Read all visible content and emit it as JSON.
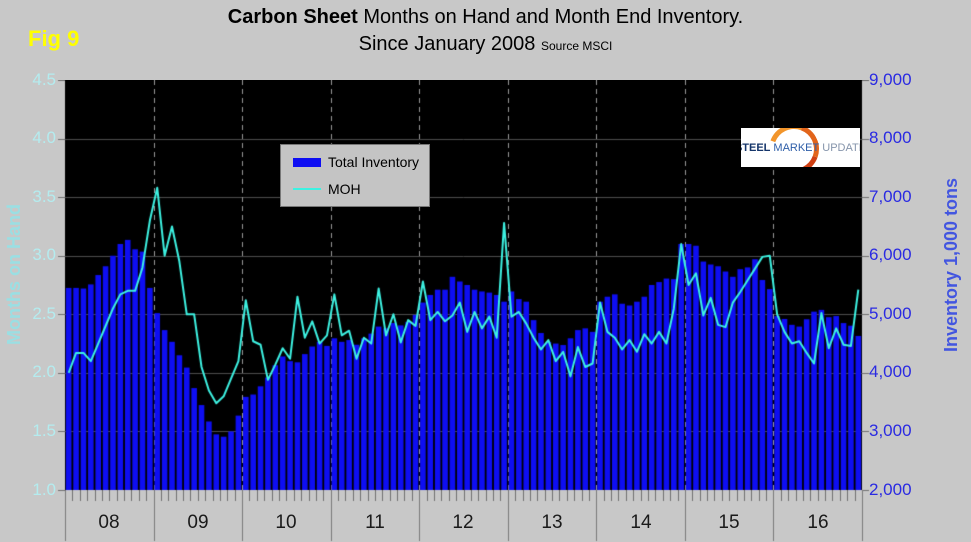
{
  "fig_label": "Fig 9",
  "title": {
    "bold": "Carbon Sheet",
    "rest": " Months on Hand and Month End Inventory.",
    "line2": "Since January 2008",
    "source": "Source MSCI"
  },
  "legend": {
    "inventory_label": "Total Inventory",
    "moh_label": "MOH"
  },
  "logo": {
    "word1": "STEEL",
    "word2": "MARKET",
    "word3": "UPDATE"
  },
  "axes": {
    "left": {
      "title": "Months on Hand",
      "ticks": [
        "4.5",
        "4.0",
        "3.5",
        "3.0",
        "2.5",
        "2.0",
        "1.5",
        "1.0"
      ]
    },
    "right": {
      "title": "Inventory 1,000 tons",
      "ticks": [
        "9,000",
        "8,000",
        "7,000",
        "6,000",
        "5,000",
        "4,000",
        "3,000",
        "2,000"
      ]
    },
    "x": {
      "years": [
        "08",
        "09",
        "10",
        "11",
        "12",
        "13",
        "14",
        "15",
        "16"
      ]
    }
  },
  "colors": {
    "page_bg": "#c8c8c8",
    "plot_bg": "#000000",
    "bar": "#0e0ef2",
    "line": "#3df2e2",
    "grid": "#4e4e4e",
    "year_dash": "#999999",
    "tick": "#707070",
    "year_line": "#7a7a7a",
    "left_axis_text": "#b4ecef",
    "right_axis_text": "#2a2ae2",
    "fig_label": "#ffff00"
  },
  "chart_data": {
    "type": "combo",
    "title": "Carbon Sheet Months on Hand and Month End Inventory. Since January 2008",
    "source": "MSCI",
    "grid": true,
    "legend_position": "upper-left-inside",
    "x": {
      "unit": "month",
      "start": "2008-01",
      "end": "2016-12",
      "year_labels": [
        "08",
        "09",
        "10",
        "11",
        "12",
        "13",
        "14",
        "15",
        "16"
      ]
    },
    "left_axis": {
      "label": "Months on Hand",
      "min": 1.0,
      "max": 4.5,
      "step": 0.5,
      "series": "MOH"
    },
    "right_axis": {
      "label": "Inventory 1,000 tons",
      "min": 2000,
      "max": 9000,
      "step": 1000,
      "series": "Total Inventory"
    },
    "series": [
      {
        "name": "Total Inventory",
        "type": "bar",
        "axis": "right",
        "values": [
          5450,
          5450,
          5440,
          5510,
          5670,
          5820,
          6000,
          6200,
          6270,
          6110,
          6070,
          5450,
          5020,
          4730,
          4530,
          4300,
          4090,
          3740,
          3450,
          3170,
          2950,
          2910,
          3000,
          3270,
          3590,
          3630,
          3770,
          3920,
          4130,
          4280,
          4200,
          4180,
          4320,
          4450,
          4530,
          4460,
          4590,
          4530,
          4560,
          4480,
          4590,
          4670,
          4790,
          4760,
          4850,
          4810,
          4870,
          4990,
          5200,
          5330,
          5420,
          5420,
          5640,
          5560,
          5500,
          5420,
          5390,
          5370,
          5330,
          5215,
          5390,
          5260,
          5215,
          4900,
          4680,
          4530,
          4500,
          4475,
          4590,
          4730,
          4760,
          4700,
          5215,
          5300,
          5340,
          5180,
          5150,
          5215,
          5300,
          5500,
          5550,
          5610,
          5600,
          6200,
          6200,
          6170,
          5900,
          5850,
          5820,
          5730,
          5640,
          5770,
          5800,
          5940,
          5585,
          5430,
          4970,
          4920,
          4820,
          4790,
          4915,
          5045,
          5075,
          4950,
          4970,
          4850,
          4805,
          4630
        ]
      },
      {
        "name": "MOH",
        "type": "line",
        "axis": "left",
        "values": [
          2.0,
          2.17,
          2.17,
          2.1,
          2.25,
          2.4,
          2.55,
          2.67,
          2.7,
          2.7,
          2.9,
          3.3,
          3.58,
          3.0,
          3.25,
          2.95,
          2.5,
          2.5,
          2.05,
          1.85,
          1.74,
          1.8,
          1.95,
          2.1,
          2.62,
          2.27,
          2.24,
          1.94,
          2.07,
          2.21,
          2.12,
          2.65,
          2.3,
          2.44,
          2.25,
          2.32,
          2.67,
          2.32,
          2.36,
          2.12,
          2.3,
          2.25,
          2.72,
          2.32,
          2.5,
          2.26,
          2.45,
          2.4,
          2.78,
          2.45,
          2.52,
          2.44,
          2.49,
          2.6,
          2.35,
          2.52,
          2.38,
          2.48,
          2.3,
          3.28,
          2.48,
          2.52,
          2.42,
          2.3,
          2.2,
          2.28,
          2.1,
          2.18,
          1.97,
          2.22,
          2.05,
          2.08,
          2.6,
          2.35,
          2.3,
          2.2,
          2.28,
          2.18,
          2.33,
          2.25,
          2.35,
          2.25,
          2.55,
          3.1,
          2.75,
          2.85,
          2.49,
          2.64,
          2.41,
          2.39,
          2.6,
          2.69,
          2.79,
          2.89,
          2.99,
          3.0,
          2.5,
          2.35,
          2.25,
          2.27,
          2.17,
          2.08,
          2.51,
          2.21,
          2.38,
          2.24,
          2.23,
          2.71
        ]
      }
    ]
  }
}
